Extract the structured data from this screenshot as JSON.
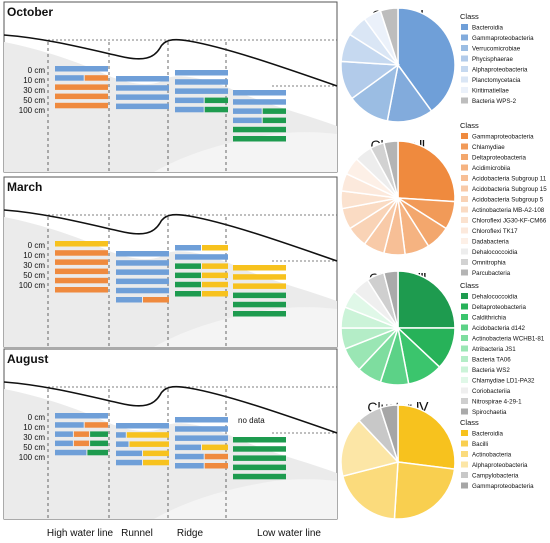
{
  "legend": [
    {
      "label": "Cluster I",
      "color": "#6f9fd8"
    },
    {
      "label": "Cluster II",
      "color": "#ef8a3e"
    },
    {
      "label": "Cluster III",
      "color": "#1e9b4f"
    },
    {
      "label": "Cluster IV",
      "color": "#f7c21e"
    }
  ],
  "panels": [
    {
      "title": "October",
      "depths": [
        "0 cm",
        "10 cm",
        "30 cm",
        "50 cm",
        "100 cm"
      ],
      "sites": [
        {
          "rows": [
            [
              [
                1,
                0
              ]
            ],
            [
              [
                0.55,
                0
              ],
              [
                0.45,
                1
              ]
            ],
            [
              [
                1,
                1
              ]
            ],
            [
              [
                1,
                1
              ]
            ],
            [
              [
                1,
                1
              ]
            ]
          ]
        },
        {
          "rows": [
            [
              [
                1,
                0
              ]
            ],
            [
              [
                1,
                0
              ]
            ],
            [
              [
                1,
                0
              ]
            ],
            [
              [
                1,
                0
              ]
            ]
          ]
        },
        {
          "rows": [
            [
              [
                1,
                0
              ]
            ],
            [
              [
                1,
                0
              ]
            ],
            [
              [
                1,
                0
              ]
            ],
            [
              [
                0.55,
                0
              ],
              [
                0.45,
                2
              ]
            ],
            [
              [
                0.55,
                0
              ],
              [
                0.45,
                2
              ]
            ]
          ]
        },
        {
          "rows": [
            [
              [
                1,
                0
              ]
            ],
            [
              [
                1,
                0
              ]
            ],
            [
              [
                0.55,
                0
              ],
              [
                0.45,
                2
              ]
            ],
            [
              [
                0.55,
                0
              ],
              [
                0.45,
                2
              ]
            ],
            [
              [
                1,
                2
              ]
            ],
            [
              [
                1,
                2
              ]
            ]
          ]
        }
      ]
    },
    {
      "title": "March",
      "depths": [
        "0 cm",
        "10 cm",
        "30 cm",
        "50 cm",
        "100 cm"
      ],
      "sites": [
        {
          "rows": [
            [
              [
                1,
                3
              ]
            ],
            [
              [
                1,
                1
              ]
            ],
            [
              [
                1,
                1
              ]
            ],
            [
              [
                1,
                1
              ]
            ],
            [
              [
                1,
                1
              ]
            ],
            [
              [
                1,
                1
              ]
            ]
          ]
        },
        {
          "rows": [
            [
              [
                1,
                0
              ]
            ],
            [
              [
                1,
                0
              ]
            ],
            [
              [
                1,
                0
              ]
            ],
            [
              [
                1,
                0
              ]
            ],
            [
              [
                1,
                0
              ]
            ],
            [
              [
                0.5,
                0
              ],
              [
                0.5,
                1
              ]
            ]
          ]
        },
        {
          "rows": [
            [
              [
                0.5,
                0
              ],
              [
                0.5,
                3
              ]
            ],
            [
              [
                1,
                0
              ]
            ],
            [
              [
                0.5,
                2
              ],
              [
                0.5,
                3
              ]
            ],
            [
              [
                0.5,
                2
              ],
              [
                0.5,
                3
              ]
            ],
            [
              [
                0.5,
                2
              ],
              [
                0.5,
                3
              ]
            ],
            [
              [
                0.5,
                2
              ],
              [
                0.5,
                3
              ]
            ]
          ]
        },
        {
          "rows": [
            [
              [
                1,
                3
              ]
            ],
            [
              [
                1,
                3
              ]
            ],
            [
              [
                1,
                3
              ]
            ],
            [
              [
                1,
                2
              ]
            ],
            [
              [
                1,
                2
              ]
            ],
            [
              [
                1,
                2
              ]
            ]
          ]
        }
      ]
    },
    {
      "title": "August",
      "depths": [
        "0 cm",
        "10 cm",
        "30 cm",
        "50 cm",
        "100 cm"
      ],
      "sites": [
        {
          "rows": [
            [
              [
                1,
                0
              ]
            ],
            [
              [
                0.55,
                0
              ],
              [
                0.45,
                1
              ]
            ],
            [
              [
                0.35,
                0
              ],
              [
                0.3,
                1
              ],
              [
                0.35,
                2
              ]
            ],
            [
              [
                0.35,
                0
              ],
              [
                0.3,
                1
              ],
              [
                0.35,
                2
              ]
            ],
            [
              [
                0.6,
                0
              ],
              [
                0.4,
                2
              ]
            ]
          ]
        },
        {
          "rows": [
            [
              [
                1,
                0
              ]
            ],
            [
              [
                0.2,
                0
              ],
              [
                0.8,
                3
              ]
            ],
            [
              [
                0.25,
                0
              ],
              [
                0.75,
                3
              ]
            ],
            [
              [
                0.5,
                0
              ],
              [
                0.5,
                3
              ]
            ],
            [
              [
                0.5,
                0
              ],
              [
                0.5,
                3
              ]
            ]
          ]
        },
        {
          "rows": [
            [
              [
                1,
                0
              ]
            ],
            [
              [
                1,
                0
              ]
            ],
            [
              [
                1,
                0
              ]
            ],
            [
              [
                0.5,
                0
              ],
              [
                0.5,
                3
              ]
            ],
            [
              [
                0.55,
                0
              ],
              [
                0.45,
                1
              ]
            ],
            [
              [
                0.55,
                0
              ],
              [
                0.45,
                1
              ]
            ]
          ]
        },
        {
          "note": "no data",
          "rows": [
            [
              [
                1,
                2
              ]
            ],
            [
              [
                1,
                2
              ]
            ],
            [
              [
                1,
                2
              ]
            ],
            [
              [
                1,
                2
              ]
            ],
            [
              [
                1,
                2
              ]
            ]
          ]
        }
      ]
    }
  ],
  "bottom_labels": [
    "High water line",
    "Runnel",
    "Ridge",
    "Low water line"
  ],
  "pies": [
    {
      "title": "Cluster Ⅰ",
      "class_header": "Class",
      "classes": [
        {
          "name": "Bacteroidia",
          "color": "#6f9fd8",
          "share": 0.4
        },
        {
          "name": "Gammaproteobacteria",
          "color": "#82abdc",
          "share": 0.13
        },
        {
          "name": "Verrucomicrobiae",
          "color": "#9bbde3",
          "share": 0.12
        },
        {
          "name": "Phycisphaerae",
          "color": "#b2cbea",
          "share": 0.11
        },
        {
          "name": "Alphaproteobacteria",
          "color": "#c6d9f0",
          "share": 0.08
        },
        {
          "name": "Planctomycetacia",
          "color": "#dae6f5",
          "share": 0.06
        },
        {
          "name": "Kiritimatiellae",
          "color": "#ebf1fa",
          "share": 0.05
        },
        {
          "name": "Bacteria WPS-2",
          "color": "#bdbdbd",
          "share": 0.05
        }
      ]
    },
    {
      "title": "Cluster Ⅱ",
      "class_header": "Class",
      "classes": [
        {
          "name": "Gammaproteobacteria",
          "color": "#ef8a3e",
          "share": 0.26
        },
        {
          "name": "Chlamydiae",
          "color": "#f19a58",
          "share": 0.08
        },
        {
          "name": "Deltaproteobacteria",
          "color": "#f3a76d",
          "share": 0.07
        },
        {
          "name": "Acidimicrobiia",
          "color": "#f5b381",
          "share": 0.07
        },
        {
          "name": "Acidobacteria Subgroup 11",
          "color": "#f7bf96",
          "share": 0.06
        },
        {
          "name": "Acidobacteria Subgroup 15",
          "color": "#f8caa8",
          "share": 0.06
        },
        {
          "name": "Acidobacteria Subgroup 5",
          "color": "#f9d3b6",
          "share": 0.06
        },
        {
          "name": "Actinobacteria MB-A2-108",
          "color": "#fadbc3",
          "share": 0.06
        },
        {
          "name": "Chloroflexi JG30-KF-CM66",
          "color": "#fbe2cf",
          "share": 0.05
        },
        {
          "name": "Chloroflexi TK17",
          "color": "#fce9dc",
          "share": 0.05
        },
        {
          "name": "Dadabacteria",
          "color": "#fdf0e7",
          "share": 0.05
        },
        {
          "name": "Dehalococcoidia",
          "color": "#ededed",
          "share": 0.05
        },
        {
          "name": "Omnitrophia",
          "color": "#d2d2d2",
          "share": 0.04
        },
        {
          "name": "Parcubacteria",
          "color": "#b4b4b4",
          "share": 0.04
        }
      ]
    },
    {
      "title": "Cluster Ⅲ",
      "class_header": "Class",
      "classes": [
        {
          "name": "Dehalococcoidia",
          "color": "#1e9b4f",
          "share": 0.25
        },
        {
          "name": "Deltaproteobacteria",
          "color": "#27b259",
          "share": 0.12
        },
        {
          "name": "Caldithrichia",
          "color": "#3bc56d",
          "share": 0.1
        },
        {
          "name": "Acidobacteria d142",
          "color": "#5cd287",
          "share": 0.08
        },
        {
          "name": "Actinobacteria WCHB1-81",
          "color": "#7edd9f",
          "share": 0.07
        },
        {
          "name": "Atribacteria JS1",
          "color": "#9ae6b4",
          "share": 0.07
        },
        {
          "name": "Bacteria TA06",
          "color": "#b4edc7",
          "share": 0.06
        },
        {
          "name": "Bacteria WS2",
          "color": "#cbf3d8",
          "share": 0.06
        },
        {
          "name": "Chlamydiae LD1-PA32",
          "color": "#e0f8e8",
          "share": 0.05
        },
        {
          "name": "Coriobacteriia",
          "color": "#efefef",
          "share": 0.05
        },
        {
          "name": "Nitrospirae 4-29-1",
          "color": "#cfcfcf",
          "share": 0.05
        },
        {
          "name": "Spirochaetia",
          "color": "#aaaaaa",
          "share": 0.04
        }
      ]
    },
    {
      "title": "Cluster Ⅳ",
      "class_header": "Class",
      "classes": [
        {
          "name": "Bacteroidia",
          "color": "#f7c21e",
          "share": 0.27
        },
        {
          "name": "Bacilli",
          "color": "#f9cf4f",
          "share": 0.24
        },
        {
          "name": "Actinobacteria",
          "color": "#fbdb7c",
          "share": 0.2
        },
        {
          "name": "Alphaproteobacteria",
          "color": "#fce6a6",
          "share": 0.17
        },
        {
          "name": "Campylobacteria",
          "color": "#c8c8c8",
          "share": 0.07
        },
        {
          "name": "Gammaproteobacteria",
          "color": "#a6a6a6",
          "share": 0.05
        }
      ]
    }
  ]
}
